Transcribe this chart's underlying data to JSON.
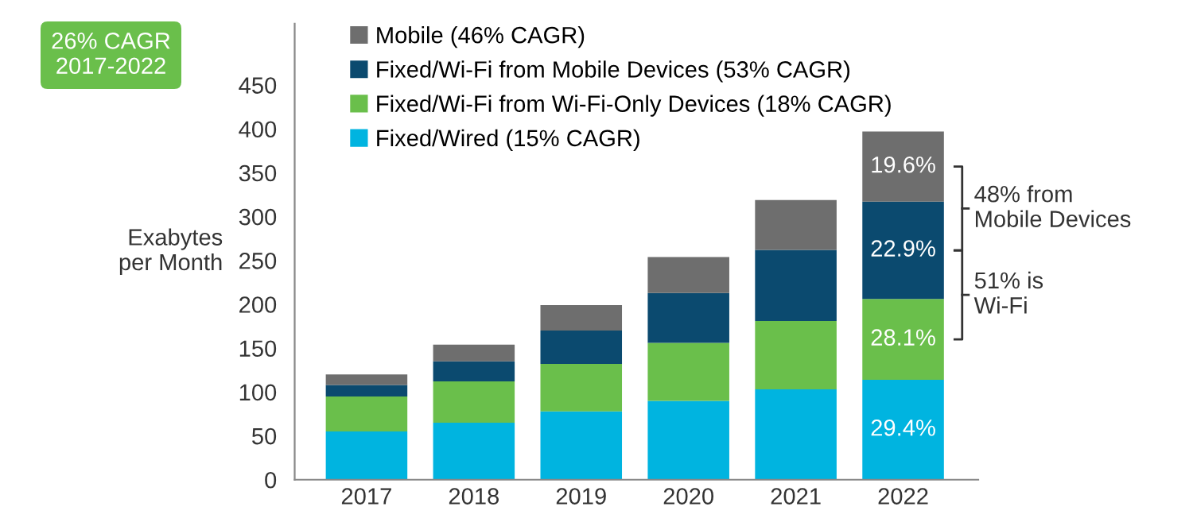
{
  "chart_data": {
    "type": "bar",
    "stacked": true,
    "ylabel": "Exabytes\nper Month",
    "categories": [
      "2017",
      "2018",
      "2019",
      "2020",
      "2021",
      "2022"
    ],
    "series": [
      {
        "name": "Fixed/Wired (15% CAGR)",
        "color": "#00b4e0",
        "values": [
          55,
          65,
          78,
          90,
          103,
          114
        ]
      },
      {
        "name": "Fixed/Wi-Fi from Wi-Fi-Only Devices (18% CAGR)",
        "color": "#6abf4b",
        "values": [
          40,
          47,
          54,
          66,
          78,
          92
        ]
      },
      {
        "name": "Fixed/Wi-Fi from Mobile Devices (53% CAGR)",
        "color": "#0b4a6f",
        "values": [
          13,
          23,
          38,
          57,
          81,
          111
        ]
      },
      {
        "name": "Mobile (46% CAGR)",
        "color": "#6e6e6e",
        "values": [
          12,
          19,
          29,
          41,
          57,
          80
        ]
      }
    ],
    "ylim": [
      0,
      520
    ],
    "yticks": [
      0,
      50,
      100,
      150,
      200,
      250,
      300,
      350,
      400,
      450
    ],
    "legend": "top left",
    "grid": false,
    "annotations": [
      "26% CAGR\n2017-2022",
      "48% from\nMobile Devices",
      "51% is\nWi-Fi",
      "29.4%",
      "28.1%",
      "22.9%",
      "19.6%"
    ]
  }
}
